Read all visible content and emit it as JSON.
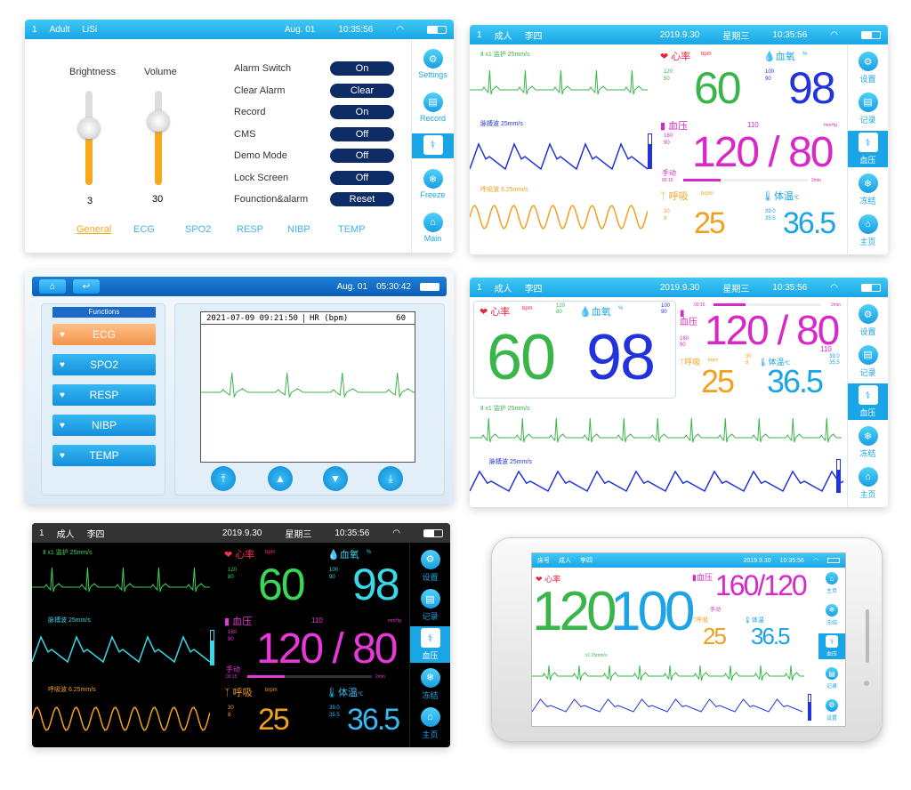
{
  "p1": {
    "status": {
      "page": "1",
      "mode": "Adult",
      "user": "LiSi",
      "date": "Aug. 01",
      "time": "10:35:56"
    },
    "brightness": {
      "label": "Brightness",
      "value": "3",
      "level": 0.3
    },
    "volume": {
      "label": "Volume",
      "value": "30",
      "level": 0.6
    },
    "settings": [
      {
        "label": "Alarm Switch",
        "value": "On"
      },
      {
        "label": "Clear Alarm",
        "value": "Clear"
      },
      {
        "label": "Record",
        "value": "On"
      },
      {
        "label": "CMS",
        "value": "Off"
      },
      {
        "label": "Demo Mode",
        "value": "Off"
      },
      {
        "label": "Lock Screen",
        "value": "Off"
      },
      {
        "label": "Founction&alarm",
        "value": "Reset"
      }
    ],
    "tabs": [
      "General",
      "ECG",
      "SPO2",
      "RESP",
      "NIBP",
      "TEMP"
    ],
    "nav": [
      "Settings",
      "Record",
      "",
      "Freeze",
      "Main"
    ]
  },
  "p2": {
    "status": {
      "page": "1",
      "mode": "成人",
      "user": "李四",
      "date": "2019.9.30",
      "weekday": "星期三",
      "time": "10:35:56"
    },
    "ecg_label": "Ⅱ   x1   监护   25mm/s",
    "pleth_label": "脉搏波  25mm/s",
    "resp_label": "呼吸波  6.25mm/s",
    "hr": {
      "label": "心率",
      "unit": "bpm",
      "hi": "120",
      "lo": "50",
      "value": "60"
    },
    "spo2": {
      "label": "血氧",
      "unit": "%",
      "hi": "100",
      "lo": "90",
      "value": "98"
    },
    "nibp": {
      "label": "血压",
      "unit": "mmHg",
      "map": "110",
      "hi": "160",
      "lo": "90",
      "value": "120 / 80",
      "mode": "手动",
      "t0": "00:15",
      "t1": "2min"
    },
    "resp": {
      "label": "呼吸",
      "unit": "brpm",
      "hi": "30",
      "lo": "8",
      "value": "25"
    },
    "temp": {
      "label": "体温",
      "unit": "℃",
      "hi": "39.0",
      "lo": "35.5",
      "value": "36.5"
    },
    "nav": [
      "设置",
      "记录",
      "血压",
      "冻结",
      "主页"
    ]
  },
  "p3": {
    "date": "Aug. 01",
    "time": "05:30:42",
    "functions_title": "Functions",
    "functions": [
      "ECG",
      "SPO2",
      "RESP",
      "NIBP",
      "TEMP"
    ],
    "datetime": "2021-07-09 09:21:50",
    "hr_label": "HR (bpm)",
    "hr_value": "60"
  },
  "p4": {
    "status": {
      "page": "1",
      "mode": "成人",
      "user": "李四",
      "date": "2019.9.30",
      "weekday": "星期三",
      "time": "10:35:56"
    },
    "hr": {
      "label": "心率",
      "unit": "bpm",
      "hi": "120",
      "lo": "80",
      "value": "60"
    },
    "spo2": {
      "label": "血氧",
      "unit": "%",
      "hi": "100",
      "lo": "90",
      "value": "98"
    },
    "nibp": {
      "label": "血压",
      "value": "120 / 80",
      "t0": "00:15",
      "t1": "2min",
      "hi": "160",
      "lo": "90",
      "map": "110",
      "unit": "mmHg"
    },
    "resp": {
      "label": "呼吸",
      "unit": "brpm",
      "hi": "30",
      "lo": "8",
      "value": "25"
    },
    "temp": {
      "label": "体温",
      "unit": "℃",
      "hi": "39.0",
      "lo": "35.5",
      "value": "36.5"
    },
    "ecg_label": "Ⅱ   x1   监护   25mm/s",
    "pleth_label": "脉搏波  25mm/s",
    "nav": [
      "设置",
      "记录",
      "血压",
      "冻结",
      "主页"
    ]
  },
  "p5": {
    "status": {
      "page": "1",
      "mode": "成人",
      "user": "李四",
      "date": "2019.9.30",
      "weekday": "星期三",
      "time": "10:35:56"
    },
    "ecg_label": "Ⅱ   x1   监护   25mm/s",
    "pleth_label": "脉搏波  25mm/s",
    "resp_label": "呼吸波  6.25mm/s",
    "hr": {
      "label": "心率",
      "unit": "bpm",
      "hi": "120",
      "lo": "80",
      "value": "60"
    },
    "spo2": {
      "label": "血氧",
      "unit": "%",
      "hi": "100",
      "lo": "90",
      "value": "98"
    },
    "nibp": {
      "label": "血压",
      "map": "110",
      "unit": "mmHg",
      "hi": "160",
      "lo": "90",
      "value": "120 / 80",
      "mode": "手动",
      "t0": "00:15",
      "t1": "2min"
    },
    "resp": {
      "label": "呼吸",
      "unit": "brpm",
      "hi": "30",
      "lo": "8",
      "value": "25"
    },
    "temp": {
      "label": "体温",
      "unit": "℃",
      "hi": "39.0",
      "lo": "35.5",
      "value": "36.5"
    },
    "nav": [
      "设置",
      "记录",
      "血压",
      "冻结",
      "主页"
    ]
  },
  "p6": {
    "status": {
      "bed": "床号",
      "mode": "成人",
      "user": "李四",
      "date": "2019.9.30",
      "time": "10:35:56"
    },
    "hr": {
      "label": "心率",
      "value": "120"
    },
    "spo2": {
      "value": "100"
    },
    "nibp": {
      "label": "血压",
      "value": "160/120",
      "mode": "手动"
    },
    "resp": {
      "label": "呼吸",
      "value": "25"
    },
    "temp": {
      "label": "体温",
      "value": "36.5"
    },
    "wave_label": "x1  25mm/s",
    "nav": [
      "主页",
      "冻结",
      "血压",
      "记录",
      "设置"
    ]
  }
}
